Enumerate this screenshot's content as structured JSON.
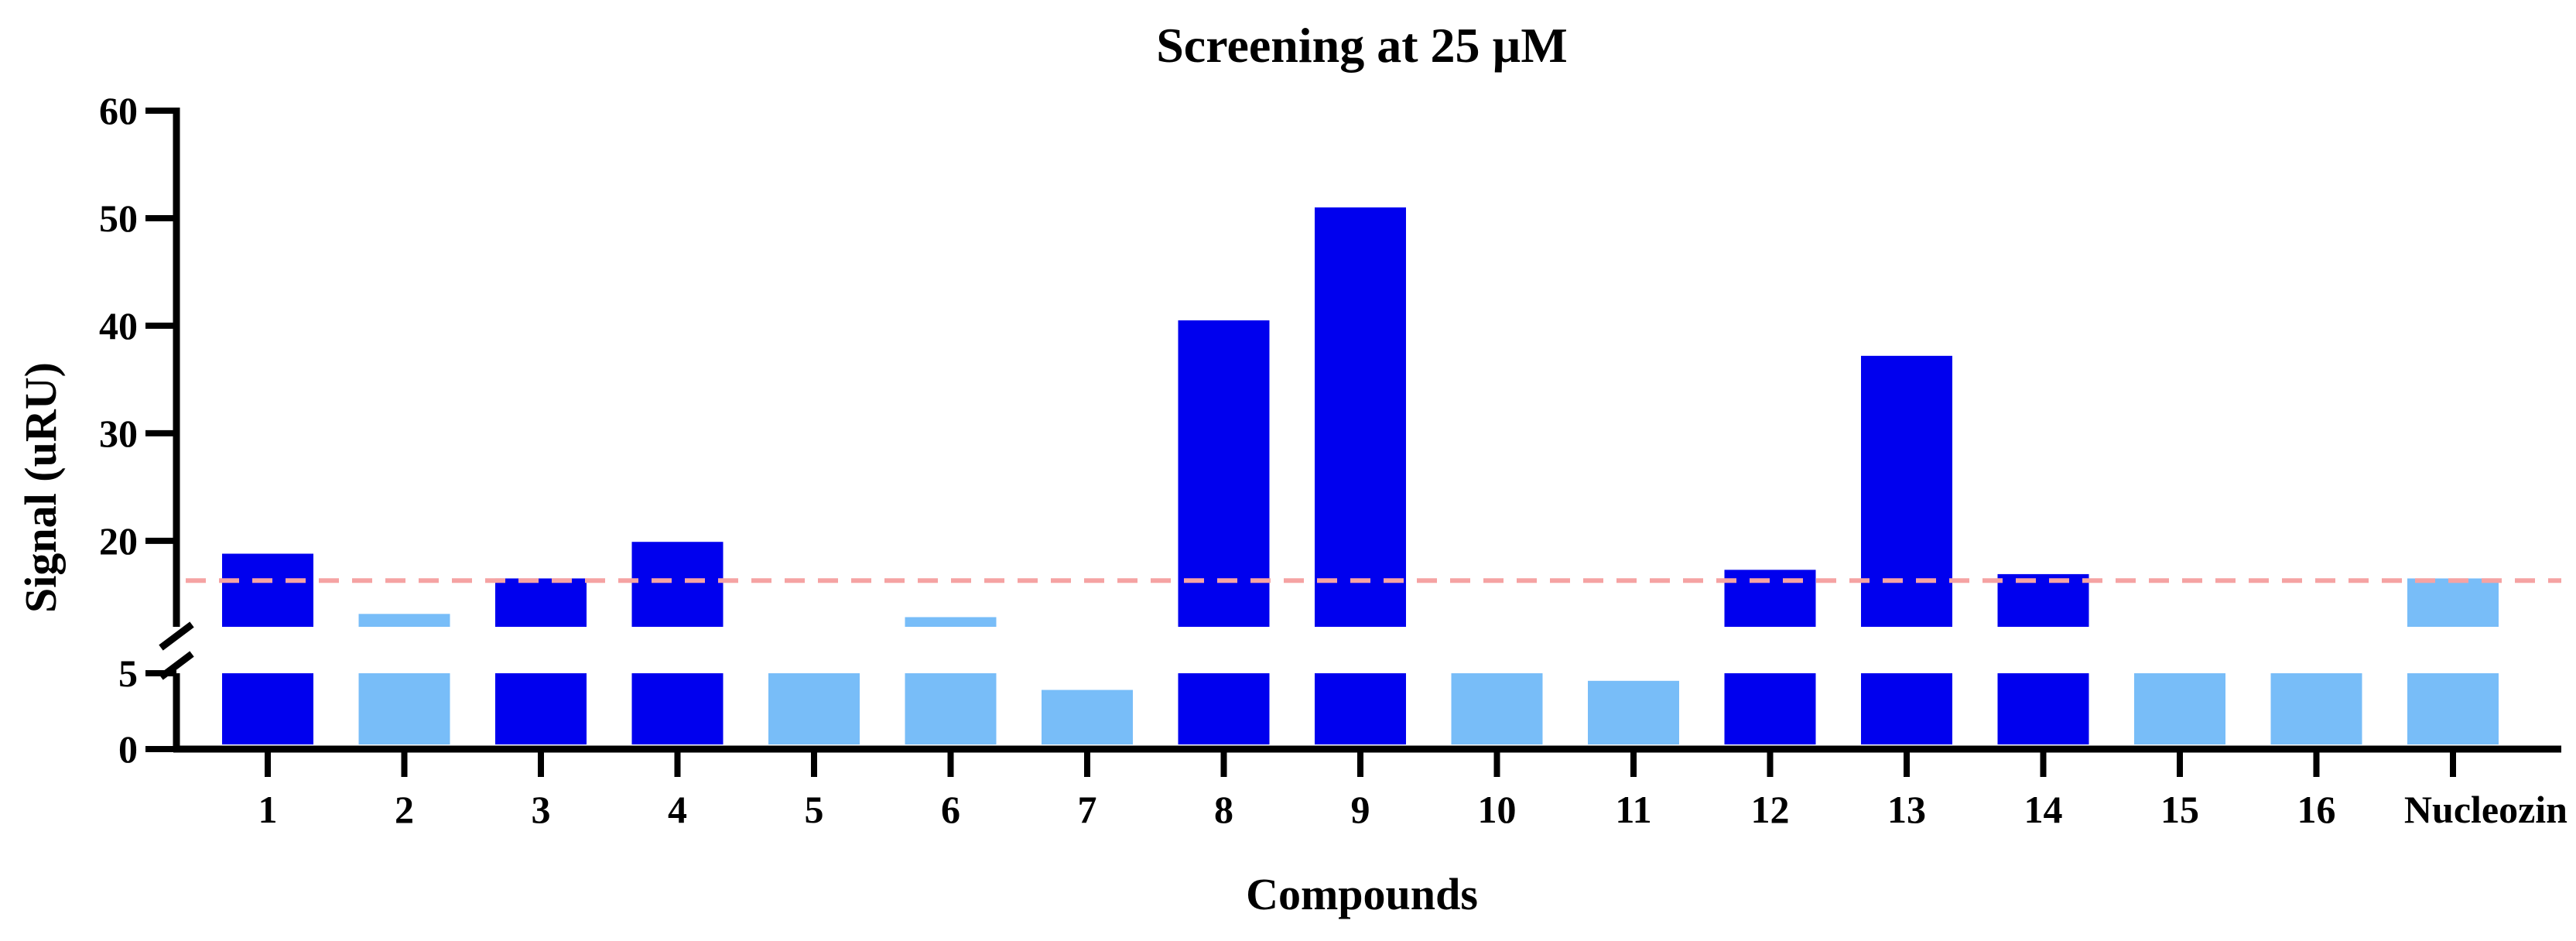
{
  "chart_data": {
    "type": "bar",
    "title": "Screening at 25 µM",
    "xlabel": "Compounds",
    "ylabel": "Signal (uRU)",
    "categories": [
      "1",
      "2",
      "3",
      "4",
      "5",
      "6",
      "7",
      "8",
      "9",
      "10",
      "11",
      "12",
      "13",
      "14",
      "15",
      "16",
      "Nucleozin"
    ],
    "values": [
      18.8,
      13.2,
      16.5,
      19.9,
      5,
      12.9,
      3.9,
      40.5,
      51,
      5,
      4.5,
      17.3,
      37.2,
      16.9,
      5,
      5,
      16.5
    ],
    "highlighted": [
      true,
      false,
      true,
      true,
      false,
      false,
      false,
      true,
      true,
      false,
      false,
      true,
      true,
      true,
      false,
      false,
      false
    ],
    "threshold": 16.3,
    "ylim": [
      0,
      60
    ],
    "axis_break": [
      5,
      12
    ],
    "yticks_lower": [
      0,
      5
    ],
    "yticks_upper": [
      20,
      30,
      40,
      50,
      60
    ],
    "grid": false,
    "colors": {
      "highlight": "#0000ee",
      "normal": "#78bdf8",
      "threshold": "#f5a3a3"
    }
  }
}
